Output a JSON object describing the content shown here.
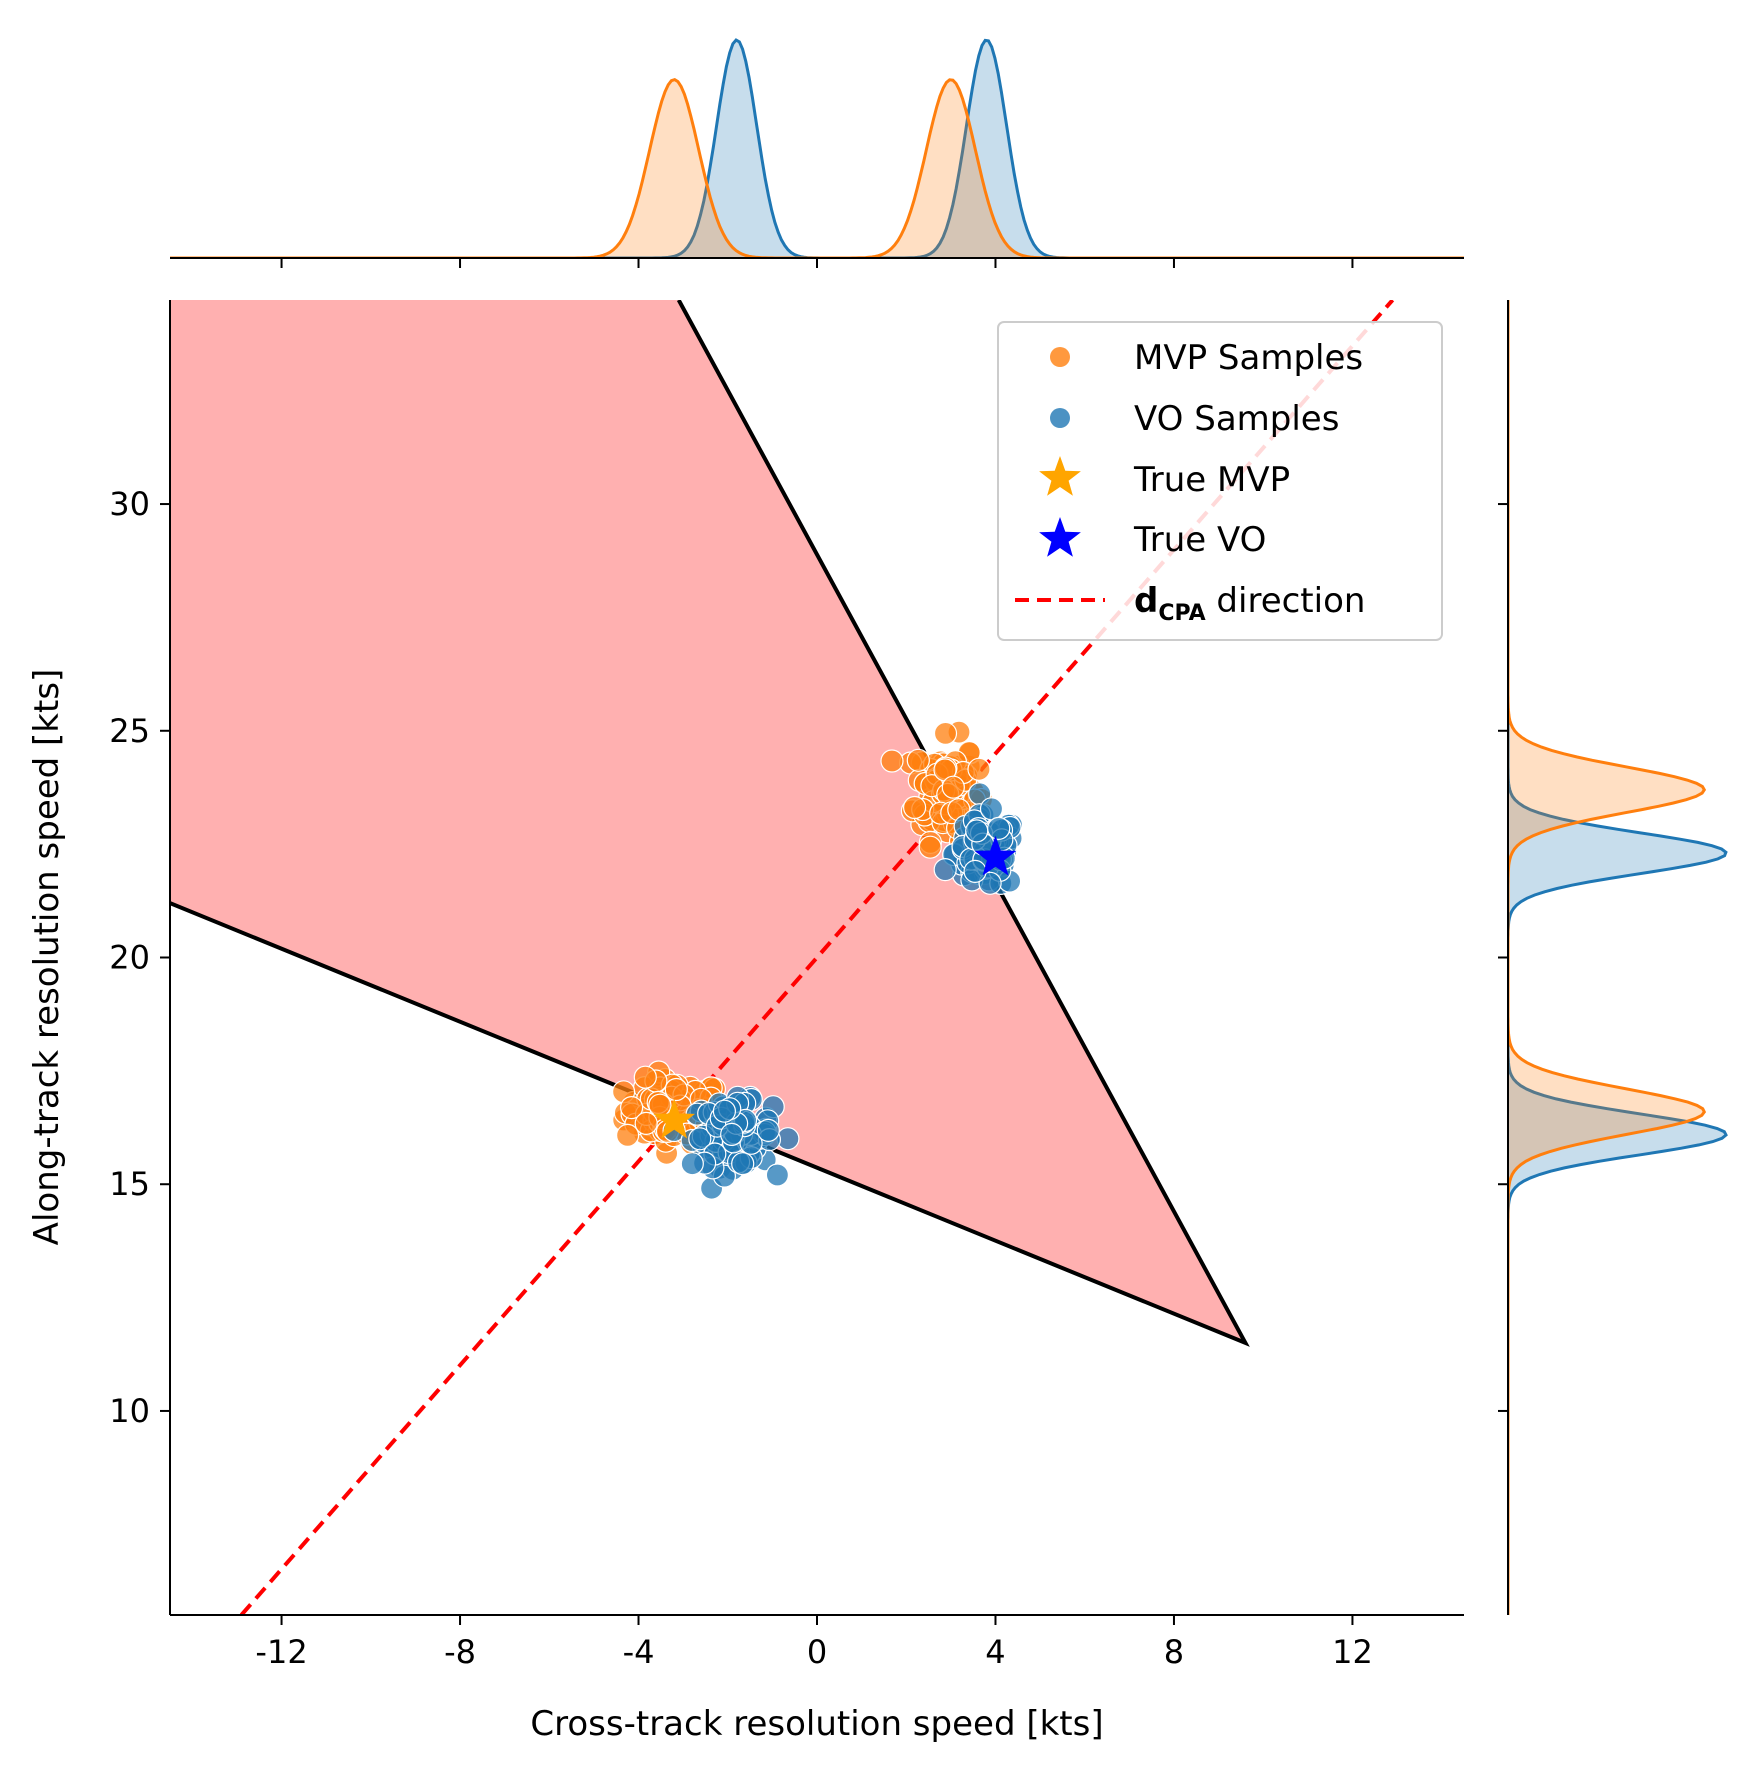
{
  "chart_data": {
    "type": "scatter",
    "xlabel": "Cross-track resolution speed [kts]",
    "ylabel": "Along-track resolution speed [kts]",
    "xlim": [
      -14.5,
      14.5
    ],
    "ylim": [
      5.5,
      34.5
    ],
    "xticks": [
      -12,
      -8,
      -4,
      0,
      4,
      8,
      12
    ],
    "yticks": [
      10,
      15,
      20,
      25,
      30
    ],
    "colors": {
      "mvp": "#ff7f0e",
      "vo": "#1f77b4",
      "true_mvp": "#ffa500",
      "true_vo": "#0000ff",
      "dcpa": "#ff0000",
      "region_fill": "#ffb0b0",
      "region_edge": "#000000"
    },
    "conflict_region": {
      "vertices": [
        [
          9.6,
          11.5
        ],
        [
          -3.1,
          34.5
        ],
        [
          -14.5,
          34.5
        ],
        [
          -14.5,
          21.2
        ]
      ]
    },
    "dcpa_line": {
      "x": [
        -12.9,
        12.9
      ],
      "y": [
        5.5,
        34.5
      ]
    },
    "clusters": {
      "mvp": [
        {
          "cx": -3.2,
          "cy": 16.6,
          "sx": 0.55,
          "sy": 0.35,
          "n": 110
        },
        {
          "cx": 2.9,
          "cy": 23.7,
          "sx": 0.35,
          "sy": 0.55,
          "n": 110
        }
      ],
      "vo": [
        {
          "cx": -1.9,
          "cy": 16.1,
          "sx": 0.45,
          "sy": 0.35,
          "n": 110
        },
        {
          "cx": 3.8,
          "cy": 22.3,
          "sx": 0.35,
          "sy": 0.4,
          "n": 110
        }
      ]
    },
    "true_points": {
      "mvp": {
        "x": -3.2,
        "y": 16.4
      },
      "vo": {
        "x": 4.0,
        "y": 22.2
      }
    },
    "marginal_x": {
      "mvp": [
        {
          "mu": -3.2,
          "sigma": 0.55
        },
        {
          "mu": 3.0,
          "sigma": 0.55
        }
      ],
      "vo": [
        {
          "mu": -1.8,
          "sigma": 0.45
        },
        {
          "mu": 3.8,
          "sigma": 0.45
        }
      ]
    },
    "marginal_y": {
      "mvp": [
        {
          "mu": 16.6,
          "sigma": 0.5
        },
        {
          "mu": 23.7,
          "sigma": 0.5
        }
      ],
      "vo": [
        {
          "mu": 16.1,
          "sigma": 0.45
        },
        {
          "mu": 22.3,
          "sigma": 0.45
        }
      ]
    },
    "legend": {
      "position": "top-right",
      "items": [
        {
          "label": "MVP Samples",
          "marker": "dot",
          "color": "#ff7f0e"
        },
        {
          "label": "VO Samples",
          "marker": "dot",
          "color": "#1f77b4"
        },
        {
          "label": "True MVP",
          "marker": "star",
          "color": "#ffa500"
        },
        {
          "label": "True VO",
          "marker": "star",
          "color": "#0000ff"
        },
        {
          "label_main": "d",
          "label_sub": "CPA",
          "label_rest": " direction",
          "marker": "dashed-line",
          "color": "#ff0000"
        }
      ]
    }
  }
}
